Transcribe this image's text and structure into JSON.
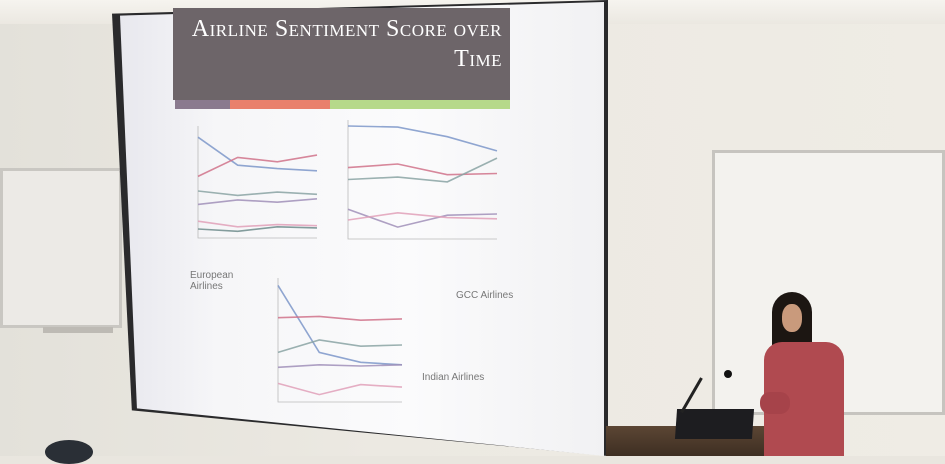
{
  "slide": {
    "title_line1": "Airline Sentiment Score over",
    "title_line2": "Time",
    "captions": {
      "european": "European Airlines",
      "gcc": "GCC Airlines",
      "indian": "Indian Airlines"
    }
  },
  "colors": {
    "title_bg": "#6d6569",
    "bar_segments": [
      "#8a7a8e",
      "#e9806c",
      "#b6d98a"
    ],
    "series": [
      "#7d97c9",
      "#d0728a",
      "#8aa3a3",
      "#a08fb8",
      "#e0a0b8",
      "#6f8c8c"
    ]
  },
  "chart_data": [
    {
      "type": "line",
      "name": "european",
      "series": [
        {
          "values": [
            9,
            6.5,
            6.2,
            6.0
          ]
        },
        {
          "values": [
            5.5,
            7.2,
            6.8,
            7.4
          ]
        },
        {
          "values": [
            4.2,
            3.8,
            4.1,
            3.9
          ]
        },
        {
          "values": [
            3.0,
            3.4,
            3.2,
            3.5
          ]
        },
        {
          "values": [
            1.5,
            1.0,
            1.2,
            1.1
          ]
        },
        {
          "values": [
            0.8,
            0.6,
            1.0,
            0.9
          ]
        }
      ]
    },
    {
      "type": "line",
      "name": "gcc",
      "series": [
        {
          "values": [
            9.5,
            9.4,
            8.6,
            7.4
          ]
        },
        {
          "values": [
            6.0,
            6.3,
            5.4,
            5.5
          ]
        },
        {
          "values": [
            5.0,
            5.2,
            4.8,
            6.8
          ]
        },
        {
          "values": [
            2.5,
            1.0,
            2.0,
            2.1
          ]
        },
        {
          "values": [
            1.6,
            2.2,
            1.8,
            1.7
          ]
        }
      ]
    },
    {
      "type": "line",
      "name": "indian",
      "series": [
        {
          "values": [
            9.4,
            4.0,
            3.2,
            3.0
          ]
        },
        {
          "values": [
            6.8,
            6.9,
            6.6,
            6.7
          ]
        },
        {
          "values": [
            4.0,
            5.0,
            4.5,
            4.6
          ]
        },
        {
          "values": [
            2.8,
            3.0,
            2.9,
            3.0
          ]
        },
        {
          "values": [
            1.5,
            0.6,
            1.4,
            1.2
          ]
        }
      ]
    }
  ]
}
